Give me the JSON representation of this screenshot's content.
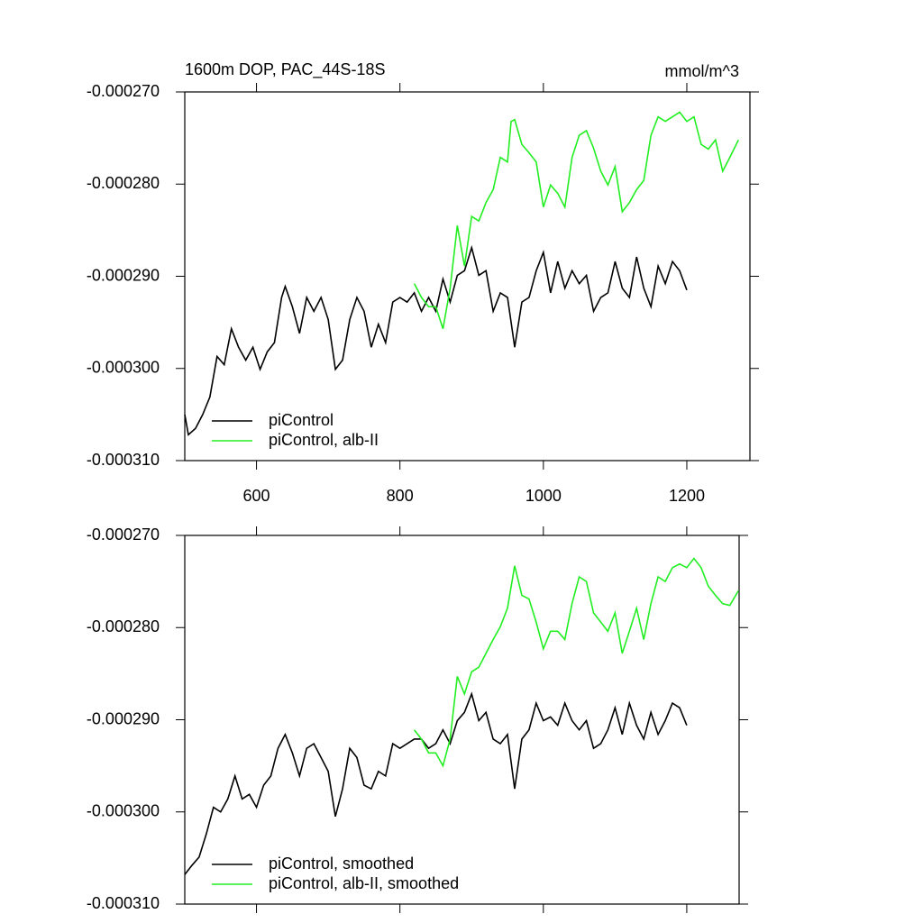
{
  "chart_data": [
    {
      "type": "line",
      "title": "1600m DOP, PAC_44S-18S",
      "units": "mmol/m^3",
      "xlim": [
        500,
        1288
      ],
      "xticks": [
        600,
        800,
        1000,
        1200
      ],
      "xtick_labels": true,
      "ylim": [
        -0.00031,
        -0.00027
      ],
      "yticks": [
        {
          "value": -0.00027,
          "label": "-0.000270"
        },
        {
          "value": -0.00028,
          "label": "-0.000280"
        },
        {
          "value": -0.00029,
          "label": "-0.000290"
        },
        {
          "value": -0.0003,
          "label": "-0.000300"
        },
        {
          "value": -0.00031,
          "label": "-0.000310"
        }
      ],
      "legend": "lower left",
      "series": [
        {
          "name": "piControl",
          "color": "#000000",
          "x": [
            500,
            505,
            515,
            525,
            535,
            545,
            555,
            565,
            575,
            585,
            595,
            605,
            615,
            625,
            635,
            640,
            650,
            660,
            670,
            680,
            690,
            700,
            710,
            720,
            730,
            740,
            750,
            760,
            770,
            780,
            790,
            800,
            810,
            820,
            830,
            840,
            850,
            860,
            870,
            880,
            890,
            900,
            910,
            920,
            930,
            940,
            950,
            960,
            970,
            980,
            990,
            1000,
            1010,
            1020,
            1030,
            1040,
            1050,
            1060,
            1070,
            1080,
            1090,
            1100,
            1110,
            1120,
            1130,
            1140,
            1150,
            1160,
            1170,
            1180,
            1190,
            1200
          ],
          "values": [
            -0.000305,
            -0.0003072,
            -0.0003065,
            -0.000305,
            -0.0003031,
            -0.0002987,
            -0.0002996,
            -0.0002957,
            -0.0002977,
            -0.0002991,
            -0.0002977,
            -0.0003001,
            -0.0002982,
            -0.0002972,
            -0.0002923,
            -0.0002911,
            -0.0002933,
            -0.0002962,
            -0.0002923,
            -0.0002938,
            -0.0002923,
            -0.0002947,
            -0.0003001,
            -0.0002991,
            -0.0002947,
            -0.0002923,
            -0.0002938,
            -0.0002977,
            -0.0002952,
            -0.0002972,
            -0.0002928,
            -0.0002923,
            -0.0002928,
            -0.0002918,
            -0.0002938,
            -0.0002923,
            -0.0002938,
            -0.0002903,
            -0.0002928,
            -0.0002899,
            -0.0002894,
            -0.0002869,
            -0.0002899,
            -0.0002894,
            -0.0002938,
            -0.0002918,
            -0.0002923,
            -0.0002977,
            -0.0002928,
            -0.0002923,
            -0.0002894,
            -0.0002874,
            -0.0002918,
            -0.0002884,
            -0.0002913,
            -0.0002894,
            -0.0002908,
            -0.0002899,
            -0.0002938,
            -0.0002923,
            -0.0002918,
            -0.0002884,
            -0.0002913,
            -0.0002923,
            -0.0002879,
            -0.0002913,
            -0.0002933,
            -0.0002889,
            -0.0002908,
            -0.0002884,
            -0.0002894,
            -0.0002915
          ]
        },
        {
          "name": "piControl, alb-II",
          "color": "#22ee22",
          "x": [
            820,
            830,
            840,
            850,
            860,
            870,
            880,
            890,
            900,
            910,
            920,
            930,
            940,
            950,
            955,
            960,
            970,
            980,
            990,
            1000,
            1010,
            1020,
            1030,
            1040,
            1050,
            1060,
            1070,
            1080,
            1090,
            1100,
            1110,
            1120,
            1130,
            1140,
            1150,
            1160,
            1170,
            1180,
            1190,
            1200,
            1210,
            1220,
            1230,
            1240,
            1250,
            1260,
            1272
          ],
          "values": [
            -0.0002908,
            -0.0002923,
            -0.0002933,
            -0.0002933,
            -0.0002957,
            -0.0002913,
            -0.0002845,
            -0.0002889,
            -0.0002835,
            -0.000284,
            -0.000282,
            -0.0002806,
            -0.0002771,
            -0.0002776,
            -0.0002732,
            -0.000273,
            -0.0002757,
            -0.0002766,
            -0.0002776,
            -0.0002825,
            -0.0002801,
            -0.000281,
            -0.0002825,
            -0.0002771,
            -0.0002747,
            -0.0002742,
            -0.0002761,
            -0.0002786,
            -0.0002801,
            -0.0002781,
            -0.000283,
            -0.000282,
            -0.0002806,
            -0.0002796,
            -0.0002747,
            -0.0002727,
            -0.0002732,
            -0.0002727,
            -0.0002722,
            -0.0002732,
            -0.0002727,
            -0.0002757,
            -0.0002762,
            -0.0002752,
            -0.0002786,
            -0.0002771,
            -0.0002752
          ]
        }
      ]
    },
    {
      "type": "line",
      "xlim": [
        500,
        1273
      ],
      "xticks": [
        600,
        800,
        1000,
        1200
      ],
      "xtick_labels": false,
      "ylim": [
        -0.00031,
        -0.00027
      ],
      "yticks": [
        {
          "value": -0.00027,
          "label": "-0.000270"
        },
        {
          "value": -0.00028,
          "label": "-0.000280"
        },
        {
          "value": -0.00029,
          "label": "-0.000290"
        },
        {
          "value": -0.0003,
          "label": "-0.000300"
        },
        {
          "value": -0.00031,
          "label": "-0.000310"
        }
      ],
      "legend": "lower left",
      "series": [
        {
          "name": "piControl, smoothed",
          "color": "#000000",
          "x": [
            500,
            510,
            520,
            530,
            540,
            550,
            560,
            570,
            580,
            590,
            600,
            610,
            620,
            630,
            640,
            650,
            660,
            670,
            680,
            690,
            700,
            710,
            720,
            730,
            740,
            750,
            760,
            770,
            780,
            790,
            800,
            810,
            820,
            830,
            840,
            850,
            860,
            870,
            880,
            890,
            900,
            910,
            920,
            930,
            940,
            950,
            960,
            970,
            980,
            990,
            1000,
            1010,
            1020,
            1030,
            1040,
            1050,
            1060,
            1070,
            1080,
            1090,
            1100,
            1110,
            1120,
            1130,
            1140,
            1150,
            1160,
            1170,
            1180,
            1190,
            1200
          ],
          "values": [
            -0.0003068,
            -0.0003058,
            -0.0003049,
            -0.0003024,
            -0.0002995,
            -0.0003,
            -0.0002986,
            -0.0002961,
            -0.0002986,
            -0.0002981,
            -0.0002995,
            -0.0002971,
            -0.0002961,
            -0.0002931,
            -0.0002916,
            -0.0002936,
            -0.0002961,
            -0.0002931,
            -0.0002926,
            -0.0002941,
            -0.0002956,
            -0.0003005,
            -0.0002975,
            -0.0002931,
            -0.0002941,
            -0.0002971,
            -0.0002975,
            -0.0002956,
            -0.0002961,
            -0.0002926,
            -0.0002931,
            -0.0002926,
            -0.0002921,
            -0.0002921,
            -0.0002931,
            -0.0002926,
            -0.0002911,
            -0.0002926,
            -0.0002901,
            -0.0002892,
            -0.0002872,
            -0.0002901,
            -0.0002892,
            -0.0002921,
            -0.0002926,
            -0.0002916,
            -0.0002975,
            -0.0002921,
            -0.0002911,
            -0.0002882,
            -0.0002901,
            -0.0002897,
            -0.0002906,
            -0.0002882,
            -0.0002901,
            -0.0002911,
            -0.0002901,
            -0.0002931,
            -0.0002926,
            -0.0002911,
            -0.0002887,
            -0.0002916,
            -0.0002882,
            -0.0002906,
            -0.0002921,
            -0.0002892,
            -0.0002916,
            -0.0002901,
            -0.0002882,
            -0.0002887,
            -0.0002906
          ]
        },
        {
          "name": "piControl, alb-II, smoothed",
          "color": "#22ee22",
          "x": [
            820,
            830,
            840,
            850,
            860,
            870,
            880,
            890,
            900,
            910,
            920,
            930,
            940,
            950,
            960,
            970,
            980,
            990,
            1000,
            1010,
            1020,
            1030,
            1040,
            1050,
            1060,
            1070,
            1080,
            1090,
            1100,
            1110,
            1120,
            1130,
            1140,
            1150,
            1160,
            1170,
            1180,
            1190,
            1200,
            1210,
            1220,
            1230,
            1240,
            1250,
            1260,
            1272
          ],
          "values": [
            -0.0002911,
            -0.0002921,
            -0.0002936,
            -0.0002936,
            -0.000295,
            -0.0002921,
            -0.0002853,
            -0.0002872,
            -0.0002848,
            -0.0002843,
            -0.0002828,
            -0.0002813,
            -0.0002799,
            -0.0002779,
            -0.0002733,
            -0.0002765,
            -0.0002769,
            -0.0002794,
            -0.0002823,
            -0.0002804,
            -0.0002804,
            -0.0002813,
            -0.0002774,
            -0.0002745,
            -0.000275,
            -0.0002784,
            -0.0002794,
            -0.0002804,
            -0.0002784,
            -0.0002828,
            -0.0002804,
            -0.0002779,
            -0.0002813,
            -0.0002774,
            -0.0002745,
            -0.000275,
            -0.0002735,
            -0.0002731,
            -0.0002735,
            -0.0002725,
            -0.0002735,
            -0.0002755,
            -0.0002765,
            -0.0002774,
            -0.0002776,
            -0.000276
          ]
        }
      ]
    }
  ]
}
